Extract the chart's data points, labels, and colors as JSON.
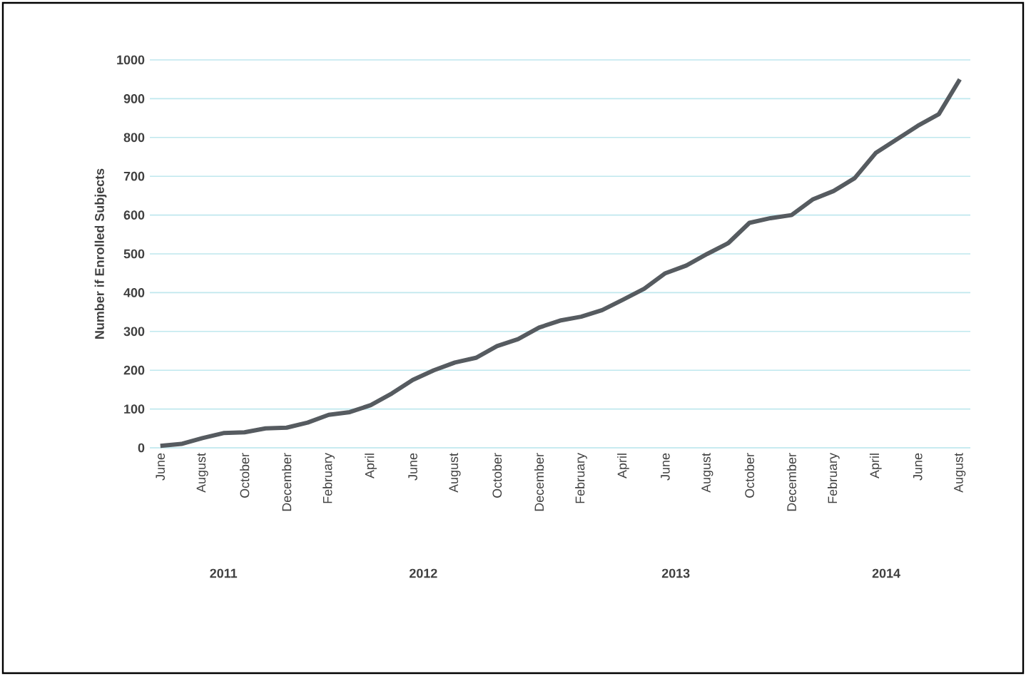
{
  "chart_data": {
    "type": "line",
    "ylabel": "Number if Enrolled Subjects",
    "categories": [
      "June",
      null,
      "August",
      null,
      "October",
      null,
      "December",
      null,
      "February",
      null,
      "April",
      null,
      "June",
      null,
      "August",
      null,
      "October",
      null,
      "December",
      null,
      "February",
      null,
      "April",
      null,
      "June",
      null,
      "August",
      null,
      "October",
      null,
      "December",
      null,
      "February",
      null,
      "April",
      null,
      "June",
      null,
      "August"
    ],
    "series": [
      {
        "color": "#565b60",
        "values": [
          5,
          10,
          25,
          38,
          40,
          50,
          52,
          65,
          85,
          92,
          110,
          140,
          175,
          200,
          220,
          232,
          262,
          280,
          310,
          328,
          338,
          355,
          382,
          410,
          450,
          470,
          500,
          528,
          580,
          592,
          600,
          640,
          662,
          695,
          760,
          795,
          830,
          860,
          950
        ]
      }
    ],
    "ylim": [
      0,
      1000
    ],
    "yticks": [
      0,
      100,
      200,
      300,
      400,
      500,
      600,
      700,
      800,
      900,
      1000
    ],
    "grid": "y",
    "marker": "none",
    "line_style": "solid",
    "annotations": [
      "2011",
      "2012",
      "2013",
      "2014"
    ]
  }
}
